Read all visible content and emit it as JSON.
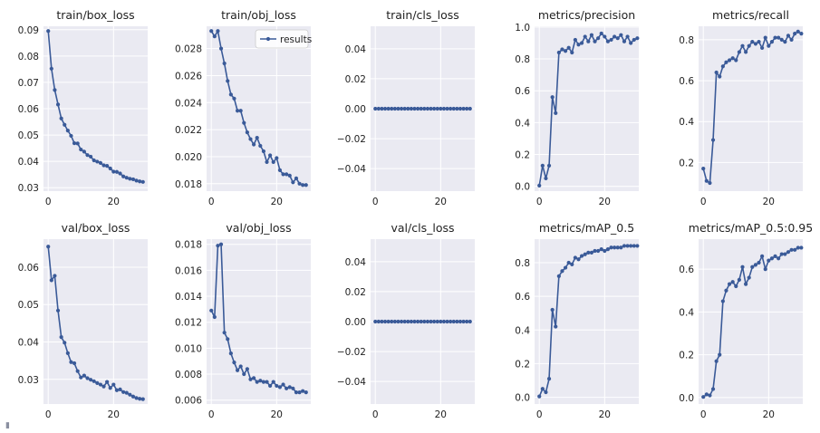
{
  "figure": {
    "legend_label": "results",
    "line_color": "#3a5a98",
    "plot_bg": "#eaeaf2",
    "grid_color": "#ffffff",
    "text_color": "#222222"
  },
  "chart_data": [
    {
      "type": "line",
      "title": "train/box_loss",
      "xlim": [
        -1.45,
        30.45
      ],
      "ylim": [
        0.0287,
        0.0913
      ],
      "yticks": [
        0.03,
        0.04,
        0.05,
        0.06,
        0.07,
        0.08,
        0.09
      ],
      "ytick_labels": [
        "0.03",
        "0.04",
        "0.05",
        "0.06",
        "0.07",
        "0.08",
        "0.09"
      ],
      "xticks": [
        0,
        20
      ],
      "xtick_labels": [
        "0",
        "20"
      ],
      "values": [
        0.0895,
        0.0752,
        0.0671,
        0.0616,
        0.0563,
        0.0539,
        0.0517,
        0.0497,
        0.0469,
        0.0468,
        0.0445,
        0.0437,
        0.0424,
        0.0418,
        0.0404,
        0.0399,
        0.0394,
        0.0385,
        0.0383,
        0.0373,
        0.0361,
        0.036,
        0.0354,
        0.0343,
        0.0338,
        0.0334,
        0.0332,
        0.0327,
        0.0324,
        0.0322
      ]
    },
    {
      "type": "line",
      "title": "train/obj_loss",
      "xlim": [
        -1.45,
        30.45
      ],
      "ylim": [
        0.01745,
        0.02965
      ],
      "yticks": [
        0.018,
        0.02,
        0.022,
        0.024,
        0.026,
        0.028
      ],
      "ytick_labels": [
        "0.018",
        "0.020",
        "0.022",
        "0.024",
        "0.026",
        "0.028"
      ],
      "xticks": [
        0,
        20
      ],
      "xtick_labels": [
        "0",
        "20"
      ],
      "legend": [
        "results"
      ],
      "values": [
        0.0293,
        0.0289,
        0.0293,
        0.028,
        0.0269,
        0.0256,
        0.0246,
        0.0243,
        0.0234,
        0.0234,
        0.0225,
        0.0218,
        0.0213,
        0.0209,
        0.0214,
        0.0208,
        0.0204,
        0.0196,
        0.0201,
        0.0196,
        0.0199,
        0.019,
        0.0187,
        0.0187,
        0.0186,
        0.0181,
        0.0184,
        0.018,
        0.0179,
        0.0179
      ]
    },
    {
      "type": "line",
      "title": "train/cls_loss",
      "xlim": [
        -1.45,
        30.45
      ],
      "ylim": [
        -0.055,
        0.055
      ],
      "yticks": [
        -0.04,
        -0.02,
        0.0,
        0.02,
        0.04
      ],
      "ytick_labels": [
        "−0.04",
        "−0.02",
        "0.00",
        "0.02",
        "0.04"
      ],
      "xticks": [
        0,
        20
      ],
      "xtick_labels": [
        "0",
        "20"
      ],
      "values": [
        0,
        0,
        0,
        0,
        0,
        0,
        0,
        0,
        0,
        0,
        0,
        0,
        0,
        0,
        0,
        0,
        0,
        0,
        0,
        0,
        0,
        0,
        0,
        0,
        0,
        0,
        0,
        0,
        0,
        0
      ]
    },
    {
      "type": "line",
      "title": "metrics/precision",
      "xlim": [
        -1.45,
        30.45
      ],
      "ylim": [
        -0.03,
        1.005
      ],
      "yticks": [
        0.0,
        0.2,
        0.4,
        0.6,
        0.8,
        1.0
      ],
      "ytick_labels": [
        "0.0",
        "0.2",
        "0.4",
        "0.6",
        "0.8",
        "1.0"
      ],
      "xticks": [
        0,
        20
      ],
      "xtick_labels": [
        "0",
        "20"
      ],
      "values": [
        0.005,
        0.13,
        0.05,
        0.13,
        0.56,
        0.46,
        0.84,
        0.86,
        0.85,
        0.87,
        0.84,
        0.92,
        0.89,
        0.9,
        0.94,
        0.91,
        0.95,
        0.91,
        0.93,
        0.96,
        0.94,
        0.91,
        0.92,
        0.94,
        0.93,
        0.95,
        0.91,
        0.94,
        0.9,
        0.92,
        0.93
      ]
    },
    {
      "type": "line",
      "title": "metrics/recall",
      "xlim": [
        -1.45,
        30.45
      ],
      "ylim": [
        0.06,
        0.866
      ],
      "yticks": [
        0.2,
        0.4,
        0.6,
        0.8
      ],
      "ytick_labels": [
        "0.2",
        "0.4",
        "0.6",
        "0.8"
      ],
      "xticks": [
        0,
        20
      ],
      "xtick_labels": [
        "0",
        "20"
      ],
      "values": [
        0.17,
        0.11,
        0.1,
        0.31,
        0.64,
        0.62,
        0.67,
        0.69,
        0.7,
        0.71,
        0.7,
        0.74,
        0.77,
        0.74,
        0.77,
        0.79,
        0.78,
        0.79,
        0.76,
        0.81,
        0.77,
        0.79,
        0.81,
        0.81,
        0.8,
        0.79,
        0.82,
        0.8,
        0.83,
        0.84,
        0.83
      ]
    },
    {
      "type": "line",
      "title": "val/box_loss",
      "xlim": [
        -1.45,
        30.45
      ],
      "ylim": [
        0.0234,
        0.0675
      ],
      "yticks": [
        0.03,
        0.04,
        0.05,
        0.06
      ],
      "ytick_labels": [
        "0.03",
        "0.04",
        "0.05",
        "0.06"
      ],
      "xticks": [
        0,
        20
      ],
      "xtick_labels": [
        "0",
        "20"
      ],
      "values": [
        0.0655,
        0.0565,
        0.0577,
        0.0484,
        0.0413,
        0.0398,
        0.037,
        0.0346,
        0.0343,
        0.0322,
        0.0305,
        0.031,
        0.0303,
        0.0299,
        0.0295,
        0.029,
        0.0286,
        0.0281,
        0.0293,
        0.0277,
        0.0286,
        0.0271,
        0.0273,
        0.0266,
        0.0264,
        0.0259,
        0.0254,
        0.025,
        0.0248,
        0.0247
      ]
    },
    {
      "type": "line",
      "title": "val/obj_loss",
      "xlim": [
        -1.45,
        30.45
      ],
      "ylim": [
        0.0057,
        0.0184
      ],
      "yticks": [
        0.006,
        0.008,
        0.01,
        0.012,
        0.014,
        0.016,
        0.018
      ],
      "ytick_labels": [
        "0.006",
        "0.008",
        "0.010",
        "0.012",
        "0.014",
        "0.016",
        "0.018"
      ],
      "xticks": [
        0,
        20
      ],
      "xtick_labels": [
        "0",
        "20"
      ],
      "values": [
        0.0129,
        0.0124,
        0.0179,
        0.018,
        0.0112,
        0.0107,
        0.0096,
        0.0089,
        0.0083,
        0.0086,
        0.008,
        0.0084,
        0.0076,
        0.0077,
        0.0074,
        0.0075,
        0.0074,
        0.0074,
        0.0071,
        0.0074,
        0.0071,
        0.007,
        0.0072,
        0.0069,
        0.007,
        0.0069,
        0.0066,
        0.0066,
        0.0067,
        0.0066
      ]
    },
    {
      "type": "line",
      "title": "val/cls_loss",
      "xlim": [
        -1.45,
        30.45
      ],
      "ylim": [
        -0.055,
        0.055
      ],
      "yticks": [
        -0.04,
        -0.02,
        0.0,
        0.02,
        0.04
      ],
      "ytick_labels": [
        "−0.04",
        "−0.02",
        "0.00",
        "0.02",
        "0.04"
      ],
      "xticks": [
        0,
        20
      ],
      "xtick_labels": [
        "0",
        "20"
      ],
      "values": [
        0,
        0,
        0,
        0,
        0,
        0,
        0,
        0,
        0,
        0,
        0,
        0,
        0,
        0,
        0,
        0,
        0,
        0,
        0,
        0,
        0,
        0,
        0,
        0,
        0,
        0,
        0,
        0,
        0,
        0
      ]
    },
    {
      "type": "line",
      "title": "metrics/mAP_0.5",
      "xlim": [
        -1.45,
        30.45
      ],
      "ylim": [
        -0.04,
        0.94
      ],
      "yticks": [
        0.0,
        0.2,
        0.4,
        0.6,
        0.8
      ],
      "ytick_labels": [
        "0.0",
        "0.2",
        "0.4",
        "0.6",
        "0.8"
      ],
      "xticks": [
        0,
        20
      ],
      "xtick_labels": [
        "0",
        "20"
      ],
      "values": [
        0.005,
        0.05,
        0.03,
        0.11,
        0.52,
        0.42,
        0.72,
        0.75,
        0.77,
        0.8,
        0.79,
        0.83,
        0.82,
        0.84,
        0.85,
        0.86,
        0.86,
        0.87,
        0.87,
        0.88,
        0.87,
        0.88,
        0.89,
        0.89,
        0.89,
        0.89,
        0.9,
        0.9,
        0.9,
        0.9,
        0.9
      ]
    },
    {
      "type": "line",
      "title": "metrics/mAP_0.5:0.95",
      "xlim": [
        -1.45,
        30.45
      ],
      "ylim": [
        -0.03,
        0.74
      ],
      "yticks": [
        0.0,
        0.2,
        0.4,
        0.6
      ],
      "ytick_labels": [
        "0.0",
        "0.2",
        "0.4",
        "0.6"
      ],
      "xticks": [
        0,
        20
      ],
      "xtick_labels": [
        "0",
        "20"
      ],
      "values": [
        0.003,
        0.015,
        0.01,
        0.04,
        0.17,
        0.2,
        0.45,
        0.5,
        0.53,
        0.54,
        0.52,
        0.55,
        0.61,
        0.53,
        0.56,
        0.61,
        0.62,
        0.63,
        0.66,
        0.6,
        0.64,
        0.65,
        0.66,
        0.65,
        0.67,
        0.67,
        0.68,
        0.69,
        0.69,
        0.7,
        0.7
      ]
    }
  ]
}
